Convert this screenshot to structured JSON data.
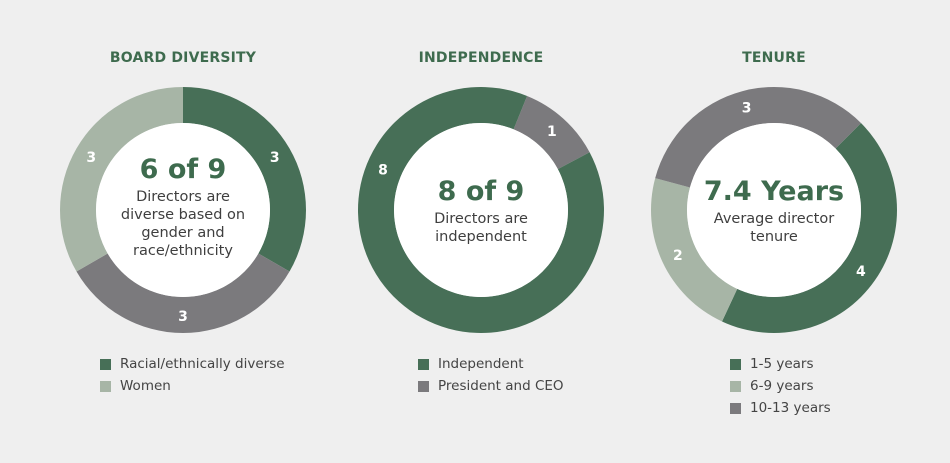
{
  "colors": {
    "dark_green": "#476f57",
    "light_green": "#a7b5a6",
    "gray": "#7b7a7d",
    "title": "#3e6b4e",
    "background": "#efefef"
  },
  "chart_data": [
    {
      "type": "pie",
      "title": "BOARD DIVERSITY",
      "center_value": "6 of 9",
      "center_label": "Directors are diverse based on gender and race/ethnicity",
      "slices": [
        {
          "label": "3",
          "value": 3,
          "color": "#476f57"
        },
        {
          "label": "3",
          "value": 3,
          "color": "#7b7a7d"
        },
        {
          "label": "3",
          "value": 3,
          "color": "#a7b5a6"
        }
      ],
      "legend": [
        {
          "label": "Racial/ethnically diverse",
          "color": "#476f57"
        },
        {
          "label": "Women",
          "color": "#a7b5a6"
        }
      ]
    },
    {
      "type": "pie",
      "title": "INDEPENDENCE",
      "center_value": "8 of 9",
      "center_label": "Directors are independent",
      "slices": [
        {
          "label": "1",
          "value": 1,
          "color": "#7b7a7d"
        },
        {
          "label": "8",
          "value": 8,
          "color": "#476f57"
        }
      ],
      "legend": [
        {
          "label": "Independent",
          "color": "#476f57"
        },
        {
          "label": "President and CEO",
          "color": "#7b7a7d"
        }
      ]
    },
    {
      "type": "pie",
      "title": "TENURE",
      "center_value": "7.4 Years",
      "center_label": "Average director tenure",
      "slices": [
        {
          "label": "4",
          "value": 4,
          "color": "#476f57"
        },
        {
          "label": "2",
          "value": 2,
          "color": "#a7b5a6"
        },
        {
          "label": "3",
          "value": 3,
          "color": "#7b7a7d"
        }
      ],
      "legend": [
        {
          "label": "1-5 years",
          "color": "#476f57"
        },
        {
          "label": "6-9 years",
          "color": "#a7b5a6"
        },
        {
          "label": "10-13 years",
          "color": "#7b7a7d"
        }
      ]
    }
  ]
}
